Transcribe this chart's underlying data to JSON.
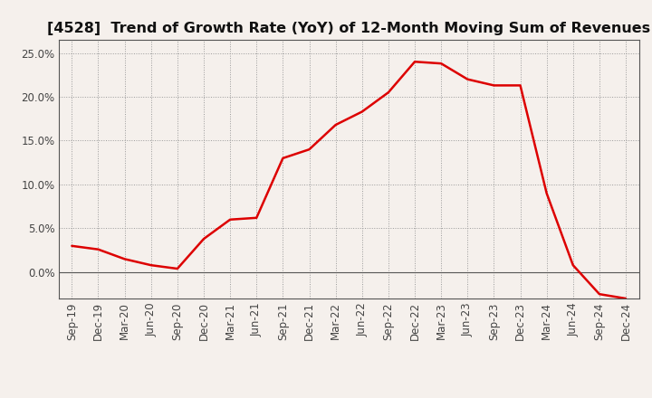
{
  "title": "[4528]  Trend of Growth Rate (YoY) of 12-Month Moving Sum of Revenues",
  "x_labels": [
    "Sep-19",
    "Dec-19",
    "Mar-20",
    "Jun-20",
    "Sep-20",
    "Dec-20",
    "Mar-21",
    "Jun-21",
    "Sep-21",
    "Dec-21",
    "Mar-22",
    "Jun-22",
    "Sep-22",
    "Dec-22",
    "Mar-23",
    "Jun-23",
    "Sep-23",
    "Dec-23",
    "Mar-24",
    "Jun-24",
    "Sep-24",
    "Dec-24"
  ],
  "y_values": [
    0.03,
    0.026,
    0.015,
    0.008,
    0.004,
    0.038,
    0.06,
    0.062,
    0.13,
    0.14,
    0.168,
    0.183,
    0.205,
    0.24,
    0.238,
    0.22,
    0.213,
    0.213,
    0.09,
    0.008,
    -0.025,
    -0.03
  ],
  "line_color": "#dd0000",
  "line_width": 1.8,
  "ylim": [
    -0.03,
    0.265
  ],
  "yticks": [
    0.0,
    0.05,
    0.1,
    0.15,
    0.2,
    0.25
  ],
  "ytick_labels": [
    "0.0%",
    "5.0%",
    "10.0%",
    "15.0%",
    "20.0%",
    "25.0%"
  ],
  "background_color": "#f5f0ec",
  "plot_bg_color": "#f5f0ec",
  "grid_color": "#999999",
  "title_fontsize": 11.5,
  "tick_fontsize": 8.5
}
